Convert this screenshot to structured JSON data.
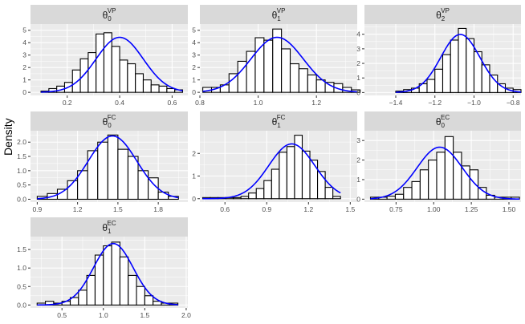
{
  "figure": {
    "ylabel": "Density",
    "strip_fill": "#d9d9d9",
    "panel_bg": "#ebebeb",
    "grid_color": "#ffffff",
    "bar_fill": "#ffffff",
    "bar_stroke": "#000000",
    "curve_color": "#0000ff"
  },
  "chart_data": [
    {
      "type": "bar",
      "param": "θ",
      "sub": "0",
      "sup": "VP",
      "xlim": [
        0.06,
        0.66
      ],
      "ylim": [
        -0.25,
        5.5
      ],
      "xticks": [
        0.2,
        0.4,
        0.6
      ],
      "xtick_labels": [
        "0.2",
        "0.4",
        "0.6"
      ],
      "yticks": [
        0,
        1,
        2,
        3,
        4,
        5
      ],
      "ytick_labels": [
        "0",
        "1",
        "2",
        "3",
        "4",
        "5"
      ],
      "bin_start": 0.1,
      "bin_width": 0.03,
      "values": [
        0.1,
        0.3,
        0.5,
        0.8,
        1.8,
        2.7,
        3.2,
        4.7,
        4.8,
        3.7,
        2.6,
        2.3,
        1.5,
        1.0,
        0.6,
        0.5,
        0.3,
        0.2
      ],
      "normal": {
        "mean": 0.4,
        "sd": 0.09
      }
    },
    {
      "type": "bar",
      "param": "θ",
      "sub": "1",
      "sup": "VP",
      "xlim": [
        0.8,
        1.34
      ],
      "ylim": [
        -0.25,
        5.5
      ],
      "xticks": [
        0.8,
        1.0,
        1.2
      ],
      "xtick_labels": [
        "0.8",
        "1.0",
        "1.2"
      ],
      "yticks": [
        0,
        1,
        2,
        3,
        4,
        5
      ],
      "ytick_labels": [
        "0",
        "1",
        "2",
        "3",
        "4",
        "5"
      ],
      "bin_start": 0.81,
      "bin_width": 0.03,
      "values": [
        0.4,
        0.4,
        0.6,
        1.5,
        2.5,
        3.3,
        4.4,
        4.2,
        5.1,
        3.5,
        2.3,
        1.9,
        1.4,
        1.0,
        0.8,
        0.7,
        0.4,
        0.2
      ],
      "normal": {
        "mean": 1.065,
        "sd": 0.09
      }
    },
    {
      "type": "bar",
      "param": "θ",
      "sub": "2",
      "sup": "VP",
      "xlim": [
        -1.56,
        -0.76
      ],
      "ylim": [
        -0.2,
        4.7
      ],
      "xticks": [
        -1.4,
        -1.2,
        -1.0,
        -0.8
      ],
      "xtick_labels": [
        "−1.4",
        "−1.2",
        "−1.0",
        "−0.8"
      ],
      "yticks": [
        0,
        1,
        2,
        3,
        4
      ],
      "ytick_labels": [
        "0",
        "1",
        "2",
        "3",
        "4"
      ],
      "bin_start": -1.4,
      "bin_width": 0.04,
      "values": [
        0.1,
        0.2,
        0.3,
        0.6,
        0.9,
        1.6,
        2.6,
        3.6,
        4.4,
        3.7,
        2.8,
        1.9,
        1.2,
        0.6,
        0.3,
        0.2
      ],
      "normal": {
        "mean": -1.07,
        "sd": 0.1
      }
    },
    {
      "type": "bar",
      "param": "θ",
      "sub": "0",
      "sup": "FC",
      "xlim": [
        0.85,
        2.02
      ],
      "ylim": [
        -0.1,
        2.4
      ],
      "xticks": [
        0.9,
        1.2,
        1.5,
        1.8
      ],
      "xtick_labels": [
        "0.9",
        "1.2",
        "1.5",
        "1.8"
      ],
      "yticks": [
        0,
        0.5,
        1.0,
        1.5,
        2.0
      ],
      "ytick_labels": [
        "0.0",
        "0.5",
        "1.0",
        "1.5",
        "2.0"
      ],
      "bin_start": 0.9,
      "bin_width": 0.075,
      "values": [
        0.1,
        0.2,
        0.35,
        0.65,
        1.0,
        1.7,
        2.0,
        2.25,
        1.75,
        1.5,
        1.0,
        0.75,
        0.25,
        0.1
      ],
      "normal": {
        "mean": 1.46,
        "sd": 0.18
      }
    },
    {
      "type": "bar",
      "param": "θ",
      "sub": "1",
      "sup": "FC",
      "xlim": [
        0.42,
        1.55
      ],
      "ylim": [
        -0.15,
        3.0
      ],
      "xticks": [
        0.6,
        0.9,
        1.2,
        1.5
      ],
      "xtick_labels": [
        "0.6",
        "0.9",
        "1.2",
        "1.5"
      ],
      "yticks": [
        0,
        1,
        2
      ],
      "ytick_labels": [
        "0",
        "1",
        "2"
      ],
      "bin_start": 0.44,
      "bin_width": 0.055,
      "values": [
        0.05,
        0.05,
        0.05,
        0.05,
        0.05,
        0.1,
        0.25,
        0.45,
        0.8,
        1.3,
        2.05,
        2.3,
        2.8,
        2.1,
        1.7,
        1.2,
        0.5,
        0.1
      ],
      "normal": {
        "mean": 1.08,
        "sd": 0.165
      }
    },
    {
      "type": "bar",
      "param": "θ",
      "sub": "0",
      "sup": "EC",
      "xlim": [
        0.54,
        1.58
      ],
      "ylim": [
        -0.15,
        3.5
      ],
      "xticks": [
        0.75,
        1.0,
        1.25,
        1.5
      ],
      "xtick_labels": [
        "0.75",
        "1.00",
        "1.25",
        "1.50"
      ],
      "yticks": [
        0,
        1,
        2,
        3
      ],
      "ytick_labels": [
        "0",
        "1",
        "2",
        "3"
      ],
      "bin_start": 0.58,
      "bin_width": 0.055,
      "values": [
        0.1,
        0.1,
        0.15,
        0.25,
        0.6,
        0.9,
        1.5,
        2.0,
        2.4,
        3.2,
        2.4,
        1.7,
        1.5,
        0.6,
        0.2,
        0.1,
        0.1,
        0.1
      ],
      "normal": {
        "mean": 1.04,
        "sd": 0.15
      }
    },
    {
      "type": "bar",
      "param": "θ",
      "sub": "1",
      "sup": "EC",
      "xlim": [
        0.12,
        2.02
      ],
      "ylim": [
        -0.08,
        1.85
      ],
      "xticks": [
        0.5,
        1.0,
        1.5,
        2.0
      ],
      "xtick_labels": [
        "0.5",
        "1.0",
        "1.5",
        "2.0"
      ],
      "yticks": [
        0,
        0.5,
        1.0,
        1.5
      ],
      "ytick_labels": [
        "0.0",
        "0.5",
        "1.0",
        "1.5"
      ],
      "bin_start": 0.2,
      "bin_width": 0.1,
      "values": [
        0.05,
        0.1,
        0.05,
        0.1,
        0.2,
        0.4,
        0.8,
        1.35,
        1.6,
        1.7,
        1.3,
        0.8,
        0.5,
        0.25,
        0.1,
        0.05,
        0.05
      ],
      "normal": {
        "mean": 1.12,
        "sd": 0.24
      }
    }
  ]
}
